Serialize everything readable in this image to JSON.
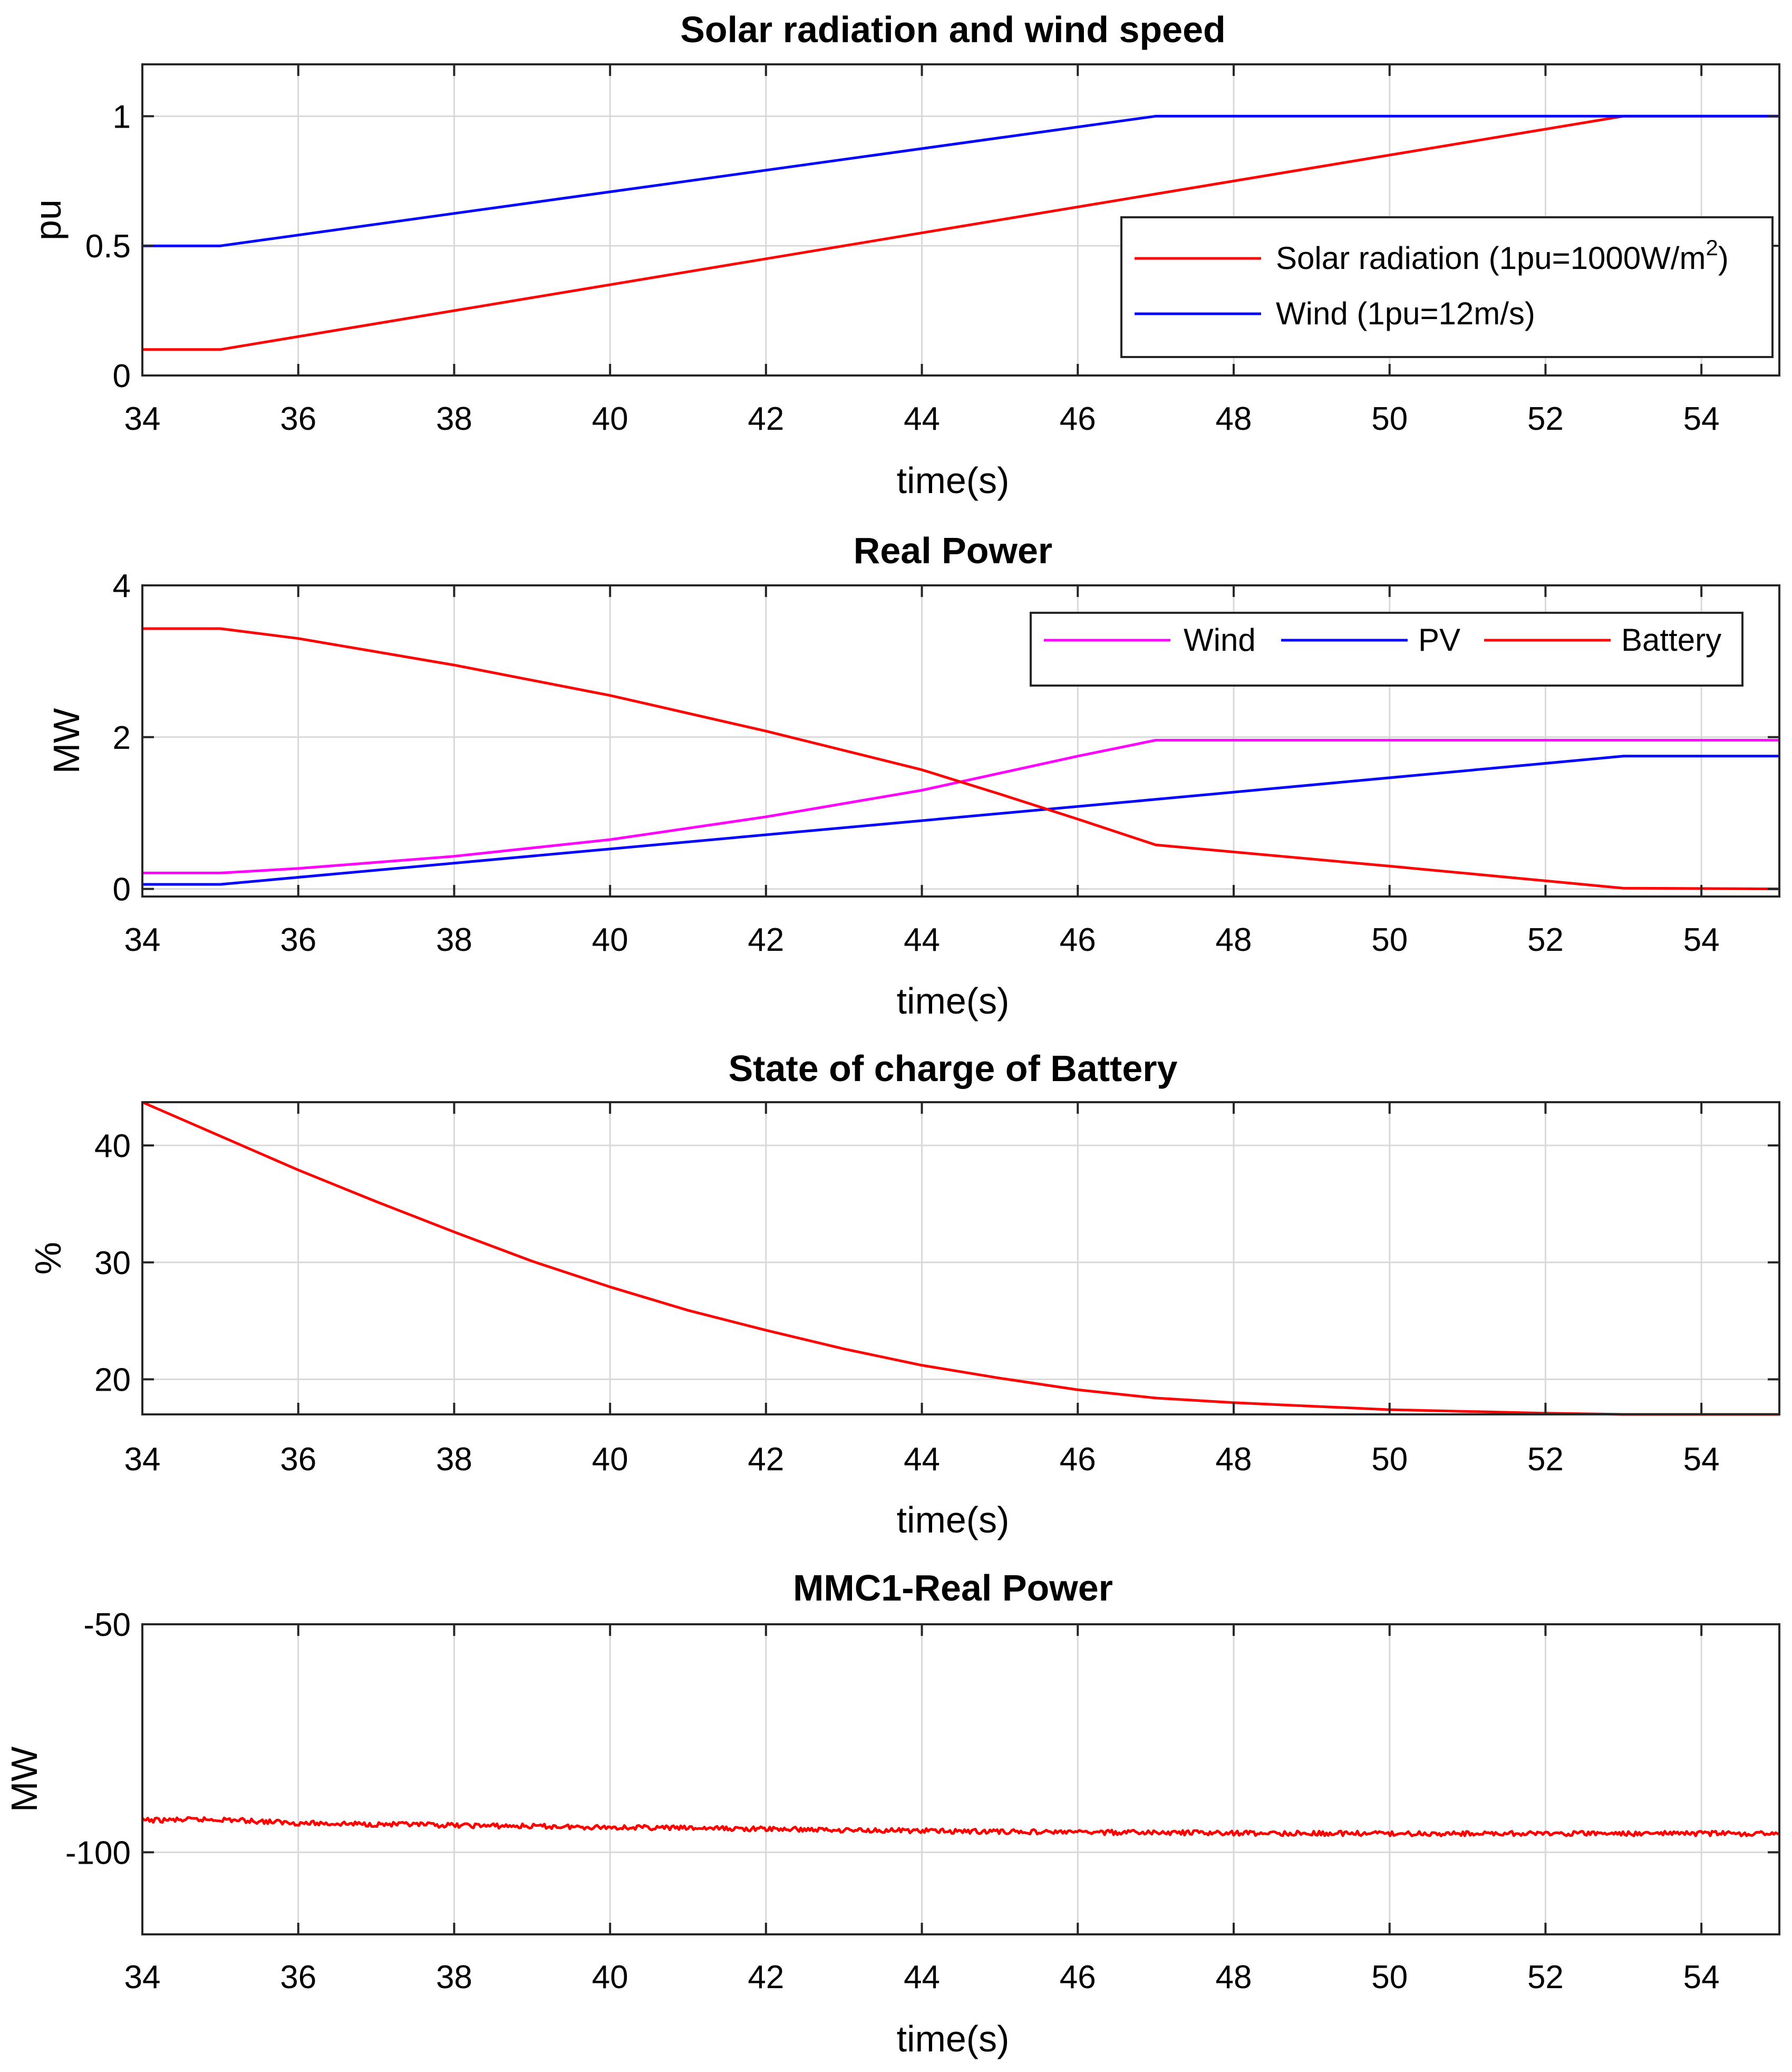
{
  "chart_data": [
    {
      "type": "line",
      "title": "Solar radiation and wind speed",
      "xlabel": "time(s)",
      "ylabel": "pu",
      "xlim": [
        34,
        55
      ],
      "ylim": [
        0,
        1.2
      ],
      "xticks": [
        "34",
        "36",
        "38",
        "40",
        "42",
        "44",
        "46",
        "48",
        "50",
        "52",
        "54"
      ],
      "yticks": [
        "0",
        "0.5",
        "1"
      ],
      "yticks_values": [
        0,
        0.5,
        1
      ],
      "grid": true,
      "legend": "lower-right",
      "series": [
        {
          "name": "Solar radiation (1pu=1000W/m",
          "name_sup": "2",
          "name_tail": ")",
          "color": "#ff0000",
          "x": [
            34,
            35,
            53,
            55
          ],
          "y": [
            0.1,
            0.1,
            1.0,
            1.0
          ]
        },
        {
          "name": "Wind (1pu=12m/s)",
          "color": "#0000ff",
          "x": [
            34,
            35,
            47,
            55
          ],
          "y": [
            0.5,
            0.5,
            1.0,
            1.0
          ]
        }
      ]
    },
    {
      "type": "line",
      "title": "Real Power",
      "xlabel": "time(s)",
      "ylabel": "MW",
      "xlim": [
        34,
        55
      ],
      "ylim": [
        -0.1,
        4
      ],
      "xticks": [
        "34",
        "36",
        "38",
        "40",
        "42",
        "44",
        "46",
        "48",
        "50",
        "52",
        "54"
      ],
      "yticks": [
        "0",
        "2",
        "4"
      ],
      "yticks_values": [
        0,
        2,
        4
      ],
      "grid": true,
      "legend": "top-right",
      "series": [
        {
          "name": "Wind",
          "color": "#ff00ff",
          "x": [
            34,
            35,
            36,
            38,
            40,
            42,
            44,
            46,
            47,
            55
          ],
          "y": [
            0.21,
            0.21,
            0.27,
            0.43,
            0.65,
            0.95,
            1.3,
            1.75,
            1.96,
            1.96
          ]
        },
        {
          "name": "PV",
          "color": "#0000ff",
          "x": [
            34,
            35,
            47,
            53,
            55
          ],
          "y": [
            0.06,
            0.06,
            1.18,
            1.75,
            1.75
          ]
        },
        {
          "name": "Battery",
          "color": "#ff0000",
          "x": [
            34,
            35,
            36,
            38,
            40,
            42,
            44,
            45,
            46,
            47,
            50,
            53,
            55
          ],
          "y": [
            3.43,
            3.43,
            3.3,
            2.95,
            2.55,
            2.08,
            1.57,
            1.25,
            0.92,
            0.58,
            0.3,
            0.01,
            0.0
          ]
        }
      ]
    },
    {
      "type": "line",
      "title": "State of charge of Battery",
      "xlabel": "time(s)",
      "ylabel": "%",
      "xlim": [
        34,
        55
      ],
      "ylim": [
        17,
        43.7
      ],
      "xticks": [
        "34",
        "36",
        "38",
        "40",
        "42",
        "44",
        "46",
        "48",
        "50",
        "52",
        "54"
      ],
      "yticks": [
        "20",
        "30",
        "40"
      ],
      "yticks_values": [
        20,
        30,
        40
      ],
      "grid": true,
      "legend": "none",
      "series": [
        {
          "name": "",
          "color": "#ff0000",
          "x": [
            34,
            35,
            36,
            37,
            38,
            39,
            40,
            41,
            42,
            43,
            44,
            45,
            46,
            47,
            48,
            50,
            52,
            53,
            55
          ],
          "y": [
            43.7,
            40.8,
            37.9,
            35.2,
            32.6,
            30.1,
            27.9,
            25.9,
            24.2,
            22.6,
            21.2,
            20.1,
            19.1,
            18.4,
            18.0,
            17.4,
            17.1,
            17.0,
            17.0
          ]
        }
      ]
    },
    {
      "type": "line",
      "title": "MMC1-Real Power",
      "xlabel": "time(s)",
      "ylabel": "MW",
      "xlim": [
        34,
        55
      ],
      "ylim": [
        -118,
        -50
      ],
      "xticks": [
        "34",
        "36",
        "38",
        "40",
        "42",
        "44",
        "46",
        "48",
        "50",
        "52",
        "54"
      ],
      "yticks": [
        "-100",
        "-50"
      ],
      "yticks_values": [
        -100,
        -50
      ],
      "grid": true,
      "legend": "none",
      "series": [
        {
          "name": "",
          "color": "#ff0000",
          "noisy": true,
          "x": [
            34,
            35,
            36,
            38,
            40,
            42,
            44,
            46,
            48,
            50,
            52,
            55
          ],
          "y": [
            -93.0,
            -92.8,
            -93.6,
            -94.1,
            -94.5,
            -94.9,
            -95.3,
            -95.6,
            -95.8,
            -95.9,
            -95.9,
            -95.9
          ]
        }
      ]
    }
  ]
}
